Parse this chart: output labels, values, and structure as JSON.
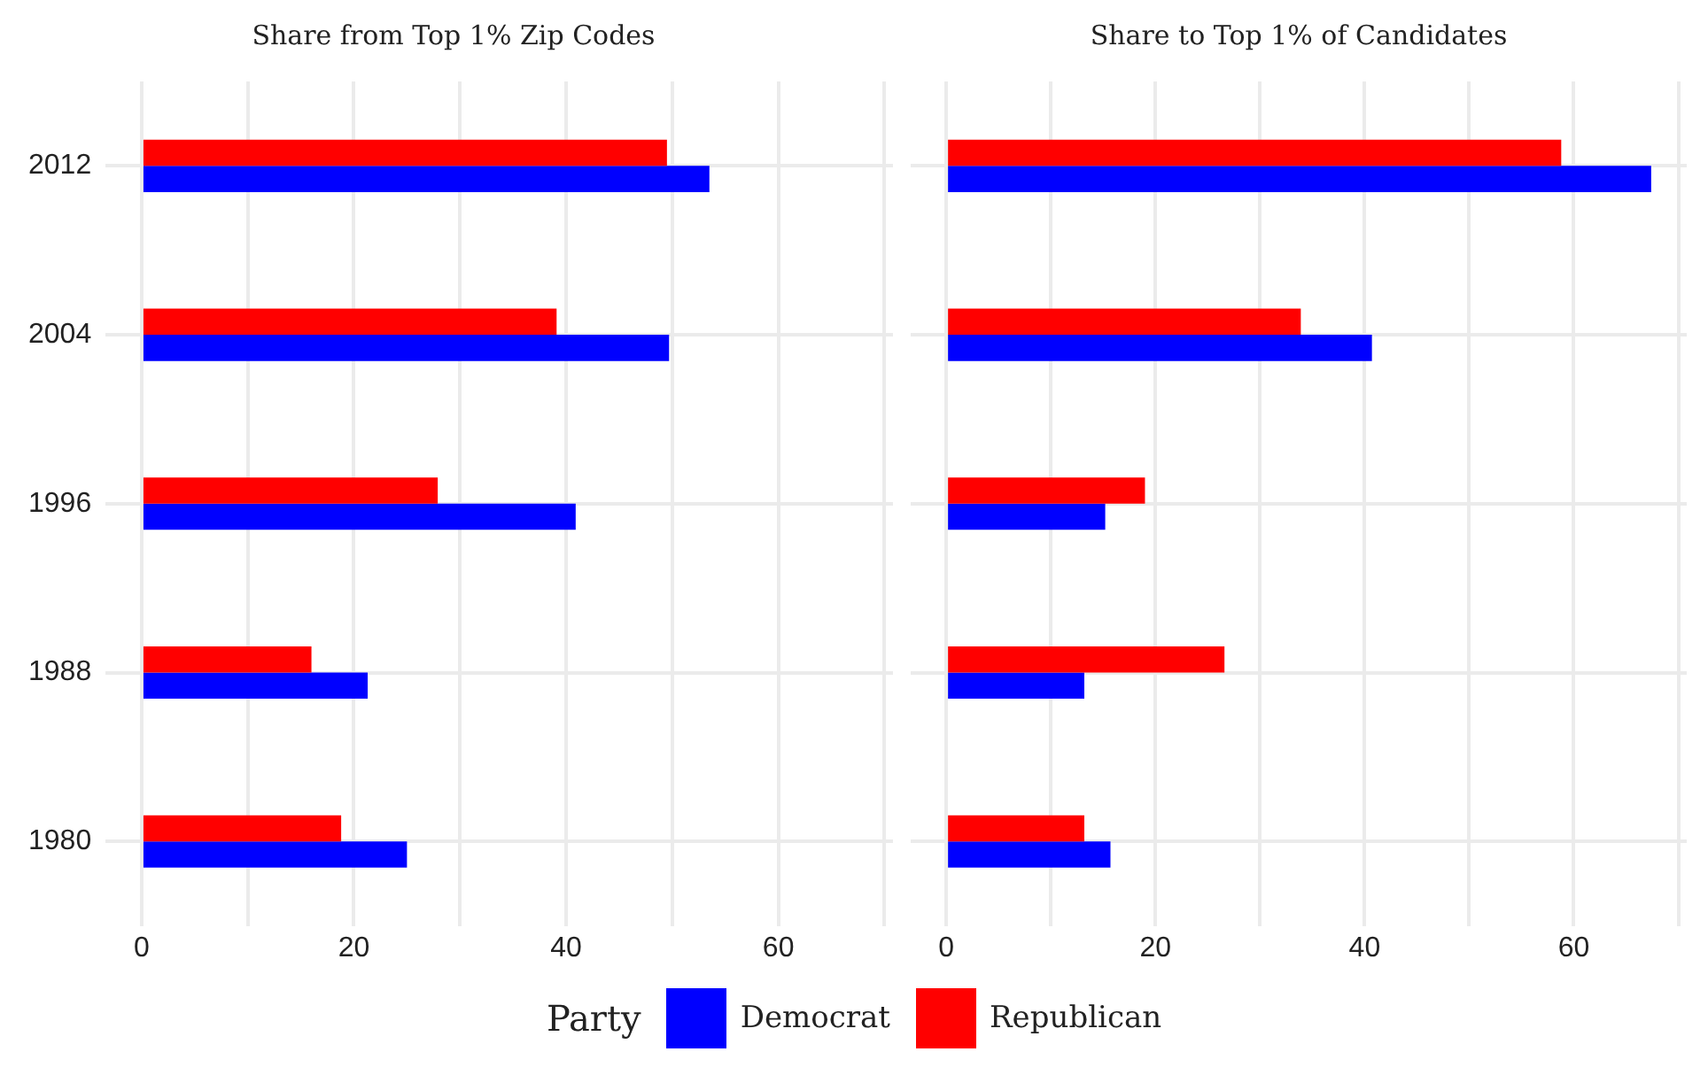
{
  "chart_data": [
    {
      "type": "bar",
      "orientation": "horizontal",
      "title": "Share from Top 1% Zip Codes",
      "categories": [
        "2012",
        "2004",
        "1996",
        "1988",
        "1980"
      ],
      "series": [
        {
          "name": "Democrat",
          "color": "#0000ff",
          "values": [
            53.5,
            49.7,
            40.9,
            21.3,
            25.0
          ]
        },
        {
          "name": "Republican",
          "color": "#ff0000",
          "values": [
            49.5,
            39.1,
            27.9,
            16.0,
            18.8
          ]
        }
      ],
      "xlim": [
        -3.4,
        70.8
      ],
      "xticks": [
        0,
        {
          "value": 10,
          "label": null
        },
        20,
        {
          "value": 30,
          "label": null
        },
        40,
        {
          "value": 50,
          "label": null
        },
        60,
        {
          "value": 70,
          "label": null
        }
      ],
      "grid": true,
      "legend": "bottom",
      "legend_title": "Party"
    },
    {
      "type": "bar",
      "orientation": "horizontal",
      "title": "Share to Top 1% of Candidates",
      "categories": [
        "2012",
        "2004",
        "1996",
        "1988",
        "1980"
      ],
      "series": [
        {
          "color": "#0000ff",
          "values": [
            67.4,
            40.7,
            15.2,
            13.2,
            15.7
          ]
        },
        {
          "color": "#ff0000",
          "values": [
            58.8,
            33.9,
            19.0,
            26.6,
            13.2
          ]
        }
      ],
      "xlim": [
        -3.4,
        70.8
      ],
      "xticks": [
        0,
        {
          "value": 10,
          "label": null
        },
        20,
        {
          "value": 30,
          "label": null
        },
        40,
        {
          "value": 50,
          "label": null
        },
        60,
        {
          "value": 70,
          "label": null
        }
      ],
      "grid": true,
      "tick_labels": "x"
    }
  ]
}
